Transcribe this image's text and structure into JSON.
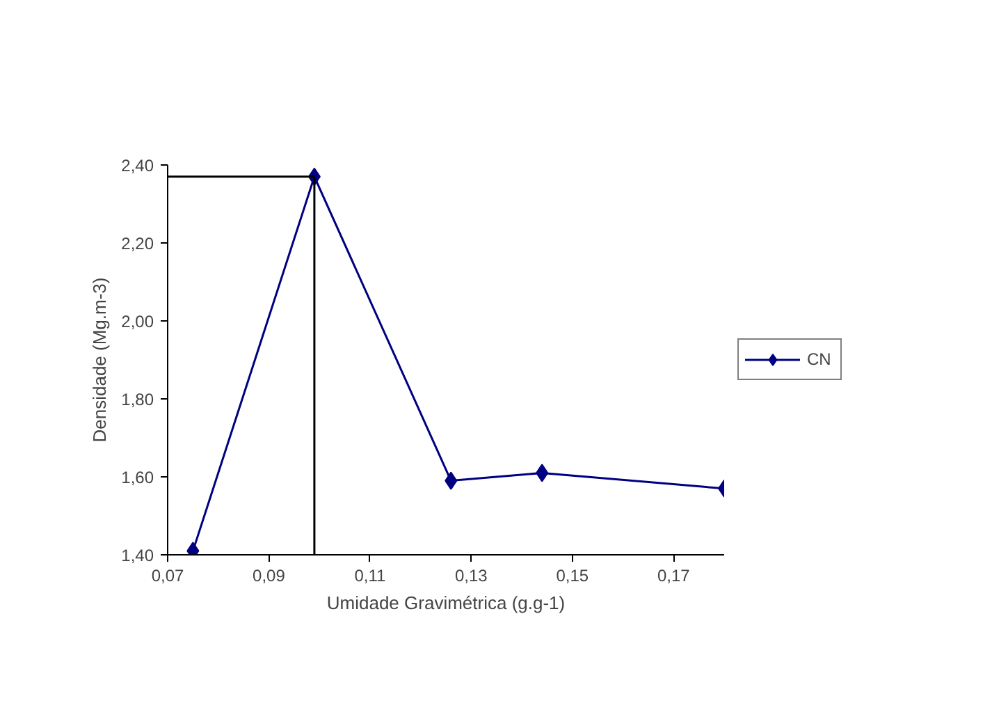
{
  "chart_data": {
    "type": "line",
    "xlabel": "Umidade Gravimétrica (g.g-1)",
    "ylabel": "Densidade (Mg.m-3)",
    "x": [
      0.075,
      0.099,
      0.126,
      0.144,
      0.18
    ],
    "series": [
      {
        "name": "CN",
        "color": "#000080",
        "values": [
          1.41,
          2.37,
          1.59,
          1.61,
          1.57
        ]
      }
    ],
    "xlim": [
      0.07,
      0.18
    ],
    "xticks": [
      {
        "value": 0.07,
        "label": "0,07"
      },
      {
        "value": 0.09,
        "label": "0,09"
      },
      {
        "value": 0.11,
        "label": "0,11"
      },
      {
        "value": 0.13,
        "label": "0,13"
      },
      {
        "value": 0.15,
        "label": "0,15"
      },
      {
        "value": 0.17,
        "label": "0,17"
      }
    ],
    "ylim": [
      1.4,
      2.4
    ],
    "yticks": [
      {
        "value": 1.4,
        "label": "1,40"
      },
      {
        "value": 1.6,
        "label": "1,60"
      },
      {
        "value": 1.8,
        "label": "1,80"
      },
      {
        "value": 2.0,
        "label": "2,00"
      },
      {
        "value": 2.2,
        "label": "2,20"
      },
      {
        "value": 2.4,
        "label": "2,40"
      }
    ],
    "ref_lines": [
      {
        "axis": "x",
        "value": 0.099,
        "color": "#000000"
      },
      {
        "axis": "y",
        "value": 2.37,
        "color": "#000000"
      }
    ],
    "grid": false,
    "legend": "right",
    "marker": "diamond",
    "line_style": "solid"
  }
}
